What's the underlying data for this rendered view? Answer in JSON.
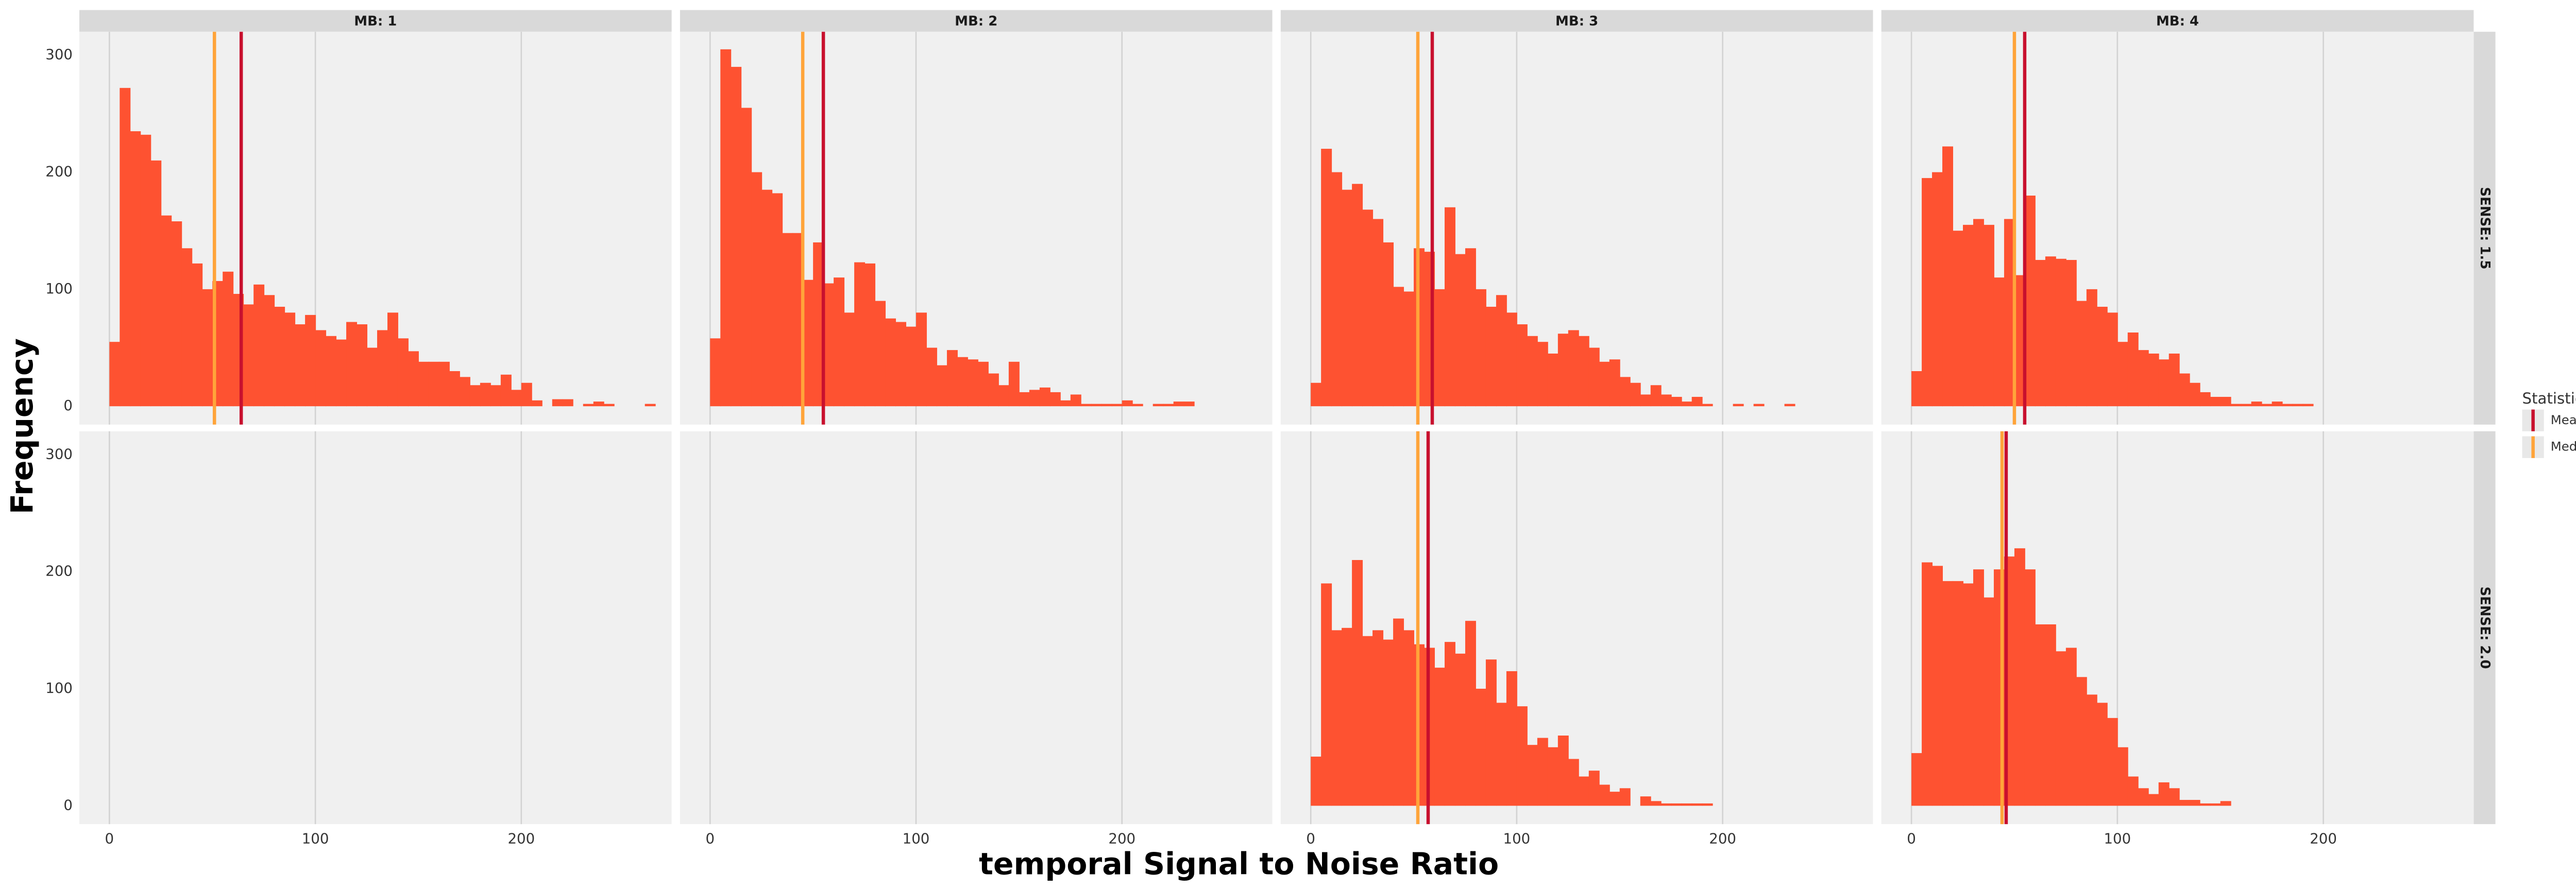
{
  "chart_data": {
    "type": "facet_histogram",
    "x_label": "temporal Signal to Noise Ratio",
    "y_label": "Frequency",
    "xlim": [
      -14.6,
      273
    ],
    "xticks": [
      0,
      100,
      200
    ],
    "ylim": [
      -15.7,
      320
    ],
    "yticks": [
      0,
      100,
      200,
      300
    ],
    "grid": "x",
    "bar_color": "#fe5231",
    "column_labels": [
      "MB: 1",
      "MB: 2",
      "MB: 3",
      "MB: 4"
    ],
    "row_labels": [
      "SENSE: 1.5",
      "SENSE: 2.0"
    ],
    "legend": {
      "title": "Statistic",
      "entries": [
        {
          "name": "Mean",
          "color": "#c8102e"
        },
        {
          "name": "Median",
          "color": "#ffa43a"
        }
      ]
    },
    "panels": [
      [
        {
          "bins": [
            0,
            5,
            10,
            15,
            20,
            25,
            30,
            35,
            40,
            45,
            50,
            55,
            60,
            65,
            70,
            75,
            80,
            85,
            90,
            95,
            100,
            105,
            110,
            115,
            120,
            125,
            130,
            135,
            140,
            145,
            150,
            155,
            160,
            165,
            170,
            175,
            180,
            185,
            190,
            195,
            200,
            205,
            210,
            215,
            220,
            225,
            230,
            235,
            240,
            245,
            250,
            255,
            260,
            265
          ],
          "values": [
            55,
            272,
            235,
            232,
            210,
            163,
            158,
            135,
            122,
            100,
            107,
            115,
            96,
            87,
            104,
            95,
            85,
            80,
            70,
            78,
            65,
            60,
            57,
            72,
            70,
            50,
            65,
            80,
            58,
            47,
            38,
            38,
            38,
            30,
            25,
            18,
            20,
            18,
            27,
            14,
            20,
            5,
            0,
            6,
            6,
            0,
            2,
            4,
            2,
            0,
            0,
            0,
            2
          ],
          "mean": 64,
          "median": 51
        },
        {
          "bins": [
            0,
            5,
            10,
            15,
            20,
            25,
            30,
            35,
            40,
            45,
            50,
            55,
            60,
            65,
            70,
            75,
            80,
            85,
            90,
            95,
            100,
            105,
            110,
            115,
            120,
            125,
            130,
            135,
            140,
            145,
            150,
            155,
            160,
            165,
            170,
            175,
            180,
            185,
            190,
            195,
            200,
            205,
            210,
            215,
            220,
            225,
            230,
            235
          ],
          "values": [
            58,
            305,
            290,
            255,
            200,
            185,
            182,
            148,
            148,
            108,
            140,
            105,
            110,
            80,
            123,
            122,
            90,
            75,
            72,
            68,
            80,
            50,
            35,
            48,
            42,
            40,
            38,
            28,
            18,
            38,
            12,
            14,
            16,
            12,
            5,
            10,
            2,
            2,
            2,
            2,
            5,
            2,
            0,
            2,
            2,
            4,
            4
          ],
          "mean": 55,
          "median": 45
        },
        {
          "bins": [
            0,
            5,
            10,
            15,
            20,
            25,
            30,
            35,
            40,
            45,
            50,
            55,
            60,
            65,
            70,
            75,
            80,
            85,
            90,
            95,
            100,
            105,
            110,
            115,
            120,
            125,
            130,
            135,
            140,
            145,
            150,
            155,
            160,
            165,
            170,
            175,
            180,
            185,
            190,
            195,
            200,
            205,
            210,
            215,
            220,
            225,
            230,
            235
          ],
          "values": [
            20,
            220,
            200,
            185,
            190,
            168,
            160,
            140,
            102,
            98,
            135,
            132,
            100,
            170,
            130,
            135,
            100,
            85,
            95,
            80,
            70,
            60,
            55,
            45,
            62,
            65,
            60,
            50,
            38,
            40,
            25,
            20,
            10,
            18,
            10,
            8,
            4,
            8,
            2,
            0,
            0,
            2,
            0,
            2,
            0,
            0,
            2
          ],
          "mean": 59,
          "median": 52
        },
        {
          "bins": [
            0,
            5,
            10,
            15,
            20,
            25,
            30,
            35,
            40,
            45,
            50,
            55,
            60,
            65,
            70,
            75,
            80,
            85,
            90,
            95,
            100,
            105,
            110,
            115,
            120,
            125,
            130,
            135,
            140,
            145,
            150,
            155,
            160,
            165,
            170,
            175,
            180,
            185,
            190,
            195
          ],
          "values": [
            30,
            195,
            200,
            222,
            150,
            155,
            160,
            155,
            110,
            160,
            112,
            180,
            125,
            128,
            126,
            125,
            90,
            100,
            85,
            80,
            55,
            63,
            48,
            45,
            40,
            45,
            28,
            20,
            12,
            8,
            8,
            2,
            2,
            4,
            2,
            4,
            2,
            2,
            2
          ],
          "mean": 55,
          "median": 50
        }
      ],
      [
        null,
        null,
        {
          "bins": [
            0,
            5,
            10,
            15,
            20,
            25,
            30,
            35,
            40,
            45,
            50,
            55,
            60,
            65,
            70,
            75,
            80,
            85,
            90,
            95,
            100,
            105,
            110,
            115,
            120,
            125,
            130,
            135,
            140,
            145,
            150,
            155,
            160,
            165,
            170,
            175,
            180,
            185,
            190,
            195
          ],
          "values": [
            42,
            190,
            150,
            152,
            210,
            145,
            150,
            142,
            160,
            150,
            138,
            135,
            118,
            140,
            130,
            158,
            100,
            125,
            88,
            115,
            85,
            52,
            58,
            50,
            60,
            40,
            25,
            30,
            18,
            12,
            15,
            0,
            8,
            4,
            2,
            2,
            2,
            2,
            2
          ],
          "mean": 57,
          "median": 52
        },
        {
          "bins": [
            0,
            5,
            10,
            15,
            20,
            25,
            30,
            35,
            40,
            45,
            50,
            55,
            60,
            65,
            70,
            75,
            80,
            85,
            90,
            95,
            100,
            105,
            110,
            115,
            120,
            125,
            130,
            135,
            140,
            145,
            150,
            155
          ],
          "values": [
            45,
            208,
            205,
            192,
            192,
            190,
            202,
            178,
            202,
            213,
            220,
            202,
            155,
            155,
            132,
            135,
            110,
            95,
            88,
            75,
            50,
            25,
            15,
            10,
            20,
            15,
            5,
            5,
            2,
            2,
            4
          ],
          "mean": 46,
          "median": 44
        }
      ]
    ]
  }
}
